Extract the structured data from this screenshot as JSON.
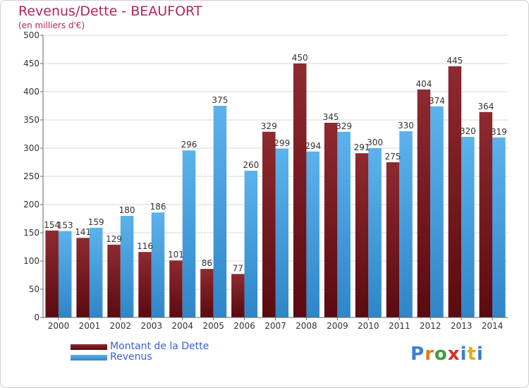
{
  "header": {
    "title": "Revenus/Dette - BEAUFORT",
    "subtitle": "(en milliers d'€)"
  },
  "legend": {
    "items": [
      {
        "label": "Montant de la Dette",
        "color": "#7a1a20"
      },
      {
        "label": "Revenus",
        "color": "#4aa3e0"
      }
    ]
  },
  "logo": {
    "text": "Proxiti",
    "colors": [
      "#3a7fd0",
      "#e07a1a",
      "#3a9e3a",
      "#d8302a",
      "#3a7fd0",
      "#e0b01a",
      "#3a7fd0"
    ]
  },
  "chart_data": {
    "type": "bar",
    "title": "Revenus/Dette - BEAUFORT",
    "subtitle": "(en milliers d'€)",
    "categories": [
      "2000",
      "2001",
      "2002",
      "2003",
      "2004",
      "2005",
      "2006",
      "2007",
      "2008",
      "2009",
      "2010",
      "2011",
      "2012",
      "2013",
      "2014"
    ],
    "series": [
      {
        "name": "Montant de la Dette",
        "color": "#7a1a20",
        "values": [
          154,
          141,
          129,
          116,
          101,
          86,
          77,
          329,
          450,
          345,
          291,
          275,
          404,
          445,
          364
        ]
      },
      {
        "name": "Revenus",
        "color": "#4aa3e0",
        "values": [
          153,
          159,
          180,
          186,
          296,
          375,
          260,
          299,
          294,
          329,
          300,
          330,
          374,
          320,
          319
        ]
      }
    ],
    "ylim": [
      0,
      500
    ],
    "yticks": [
      0,
      50,
      100,
      150,
      200,
      250,
      300,
      350,
      400,
      450,
      500
    ],
    "grid": true,
    "legend_position": "bottom-left"
  }
}
